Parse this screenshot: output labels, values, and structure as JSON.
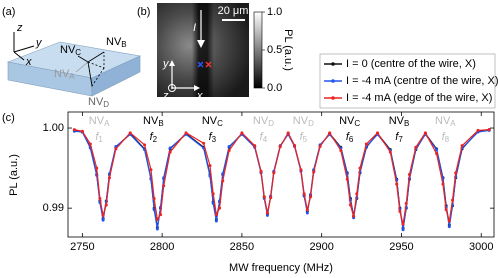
{
  "panels": {
    "a": {
      "label": "(a)",
      "axes": [
        "x",
        "y",
        "z"
      ],
      "nv": [
        {
          "text": "NV",
          "sub": "C"
        },
        {
          "text": "NV",
          "sub": "B"
        },
        {
          "text": "NV",
          "sub": "A"
        },
        {
          "text": "NV",
          "sub": "D"
        }
      ]
    },
    "b": {
      "label": "(b)",
      "scale_bar": "20 μm",
      "current": "I",
      "axes": [
        "y",
        "x",
        "z"
      ],
      "colorbar": {
        "label": "PL (a.u.)",
        "lim": [
          0,
          1
        ],
        "ticks": [
          {
            "value": 1,
            "label": "1.0"
          },
          0.5,
          {
            "value": 0,
            "label": "0.0"
          }
        ]
      }
    }
  },
  "chart_data": {
    "type": "line",
    "panel_label": "(c)",
    "xlabel": "MW frequency (MHz)",
    "ylabel": "PL (a.u.)",
    "legend": "upper right",
    "xlim": [
      2741,
      3008
    ],
    "xticks": [
      2750,
      2800,
      2850,
      2900,
      2950,
      3000
    ],
    "ylim": [
      0.9864,
      1.002
    ],
    "yticks": [
      0.99,
      {
        "value": 1,
        "label": "1.00"
      }
    ],
    "dip_labels": [
      {
        "nv": "NV",
        "sub": "A",
        "f": "f",
        "n": "1",
        "color": "#bbbbbb"
      },
      {
        "nv": "NV",
        "sub": "B",
        "f": "f",
        "n": "2",
        "color": "#000000"
      },
      {
        "nv": "NV",
        "sub": "C",
        "f": "f",
        "n": "3",
        "color": "#000000"
      },
      {
        "nv": "NV",
        "sub": "D",
        "f": "f",
        "n": "4",
        "color": "#bbbbbb"
      },
      {
        "nv": "NV",
        "sub": "D",
        "f": "f",
        "n": "5",
        "color": "#bbbbbb"
      },
      {
        "nv": "NV",
        "sub": "C",
        "f": "f",
        "n": "6",
        "color": "#000000"
      },
      {
        "nv": "NV",
        "sub": "B",
        "f": "f",
        "n": "7",
        "color": "#000000"
      },
      {
        "nv": "NV",
        "sub": "A",
        "f": "f",
        "n": "8",
        "color": "#bbbbbb"
      }
    ],
    "x": [
      2745,
      2750,
      2755,
      2759,
      2761,
      2763,
      2765,
      2767,
      2771,
      2780,
      2789,
      2793,
      2795,
      2797,
      2799,
      2801,
      2805,
      2815,
      2826,
      2830,
      2832,
      2834,
      2836,
      2838,
      2842,
      2850,
      2858,
      2862,
      2864,
      2866,
      2868,
      2870,
      2874,
      2879,
      2883,
      2887,
      2889,
      2891,
      2893,
      2895,
      2899,
      2905,
      2912,
      2916,
      2918,
      2920,
      2922,
      2924,
      2928,
      2935,
      2943,
      2947,
      2949,
      2951,
      2953,
      2955,
      2959,
      2965,
      2972,
      2976,
      2978,
      2980,
      2982,
      2984,
      2988,
      2998,
      3005
    ],
    "series": [
      {
        "name": "I = 0 (centre of the wire, X)",
        "color": "#111111",
        "values": [
          0.9997,
          0.9995,
          0.9976,
          0.9942,
          0.9909,
          0.9887,
          0.9909,
          0.9942,
          0.9976,
          0.9993,
          0.9974,
          0.9937,
          0.99,
          0.9876,
          0.99,
          0.9937,
          0.9974,
          0.9993,
          0.9976,
          0.9942,
          0.9908,
          0.9886,
          0.9908,
          0.9942,
          0.9976,
          0.9993,
          0.9977,
          0.9945,
          0.9914,
          0.9893,
          0.9914,
          0.9945,
          0.9977,
          0.9993,
          0.9978,
          0.9947,
          0.9916,
          0.9896,
          0.9916,
          0.9947,
          0.9978,
          0.9993,
          0.9976,
          0.9944,
          0.9912,
          0.989,
          0.9912,
          0.9944,
          0.9976,
          0.9993,
          0.9973,
          0.9936,
          0.99,
          0.9875,
          0.99,
          0.9936,
          0.9973,
          0.9993,
          0.9974,
          0.9938,
          0.9903,
          0.9879,
          0.9903,
          0.9938,
          0.9974,
          0.9996,
          0.9998
        ]
      },
      {
        "name": "I = -4 mA (centre of the wire, X)",
        "color": "#2255ee",
        "values": [
          0.9996,
          0.9995,
          0.9975,
          0.9941,
          0.9907,
          0.9885,
          0.9908,
          0.9943,
          0.9977,
          0.9992,
          0.9973,
          0.9936,
          0.9898,
          0.9874,
          0.9901,
          0.9938,
          0.9975,
          0.9992,
          0.9975,
          0.994,
          0.9906,
          0.9884,
          0.9909,
          0.9943,
          0.9977,
          0.9992,
          0.9976,
          0.9944,
          0.9912,
          0.9891,
          0.9915,
          0.9946,
          0.9978,
          0.9992,
          0.9977,
          0.9946,
          0.9915,
          0.9894,
          0.9917,
          0.9948,
          0.9979,
          0.9992,
          0.9975,
          0.9943,
          0.991,
          0.9888,
          0.9913,
          0.9945,
          0.9977,
          0.9992,
          0.9972,
          0.9935,
          0.9899,
          0.9873,
          0.9901,
          0.9937,
          0.9974,
          0.9992,
          0.9973,
          0.9937,
          0.9901,
          0.9877,
          0.9904,
          0.9939,
          0.9975,
          0.9995,
          0.9997
        ]
      },
      {
        "name": "I = -4 mA (edge of the wire, X)",
        "color": "#ee2222",
        "values": [
          0.9998,
          0.9996,
          0.998,
          0.995,
          0.9912,
          0.9891,
          0.9904,
          0.9938,
          0.9974,
          0.9994,
          0.9979,
          0.9948,
          0.9912,
          0.9886,
          0.9892,
          0.9928,
          0.997,
          0.9994,
          0.9981,
          0.9953,
          0.9918,
          0.9892,
          0.99,
          0.9934,
          0.9972,
          0.9994,
          0.9978,
          0.9946,
          0.9914,
          0.9894,
          0.9913,
          0.9944,
          0.9977,
          0.9994,
          0.9978,
          0.9948,
          0.9918,
          0.9898,
          0.9914,
          0.9945,
          0.9977,
          0.9994,
          0.9972,
          0.9936,
          0.9904,
          0.989,
          0.9918,
          0.995,
          0.998,
          0.9994,
          0.997,
          0.993,
          0.9896,
          0.988,
          0.9906,
          0.9942,
          0.9976,
          0.9994,
          0.9968,
          0.993,
          0.9898,
          0.9884,
          0.991,
          0.9944,
          0.9978,
          0.9997,
          0.9998
        ]
      }
    ]
  }
}
